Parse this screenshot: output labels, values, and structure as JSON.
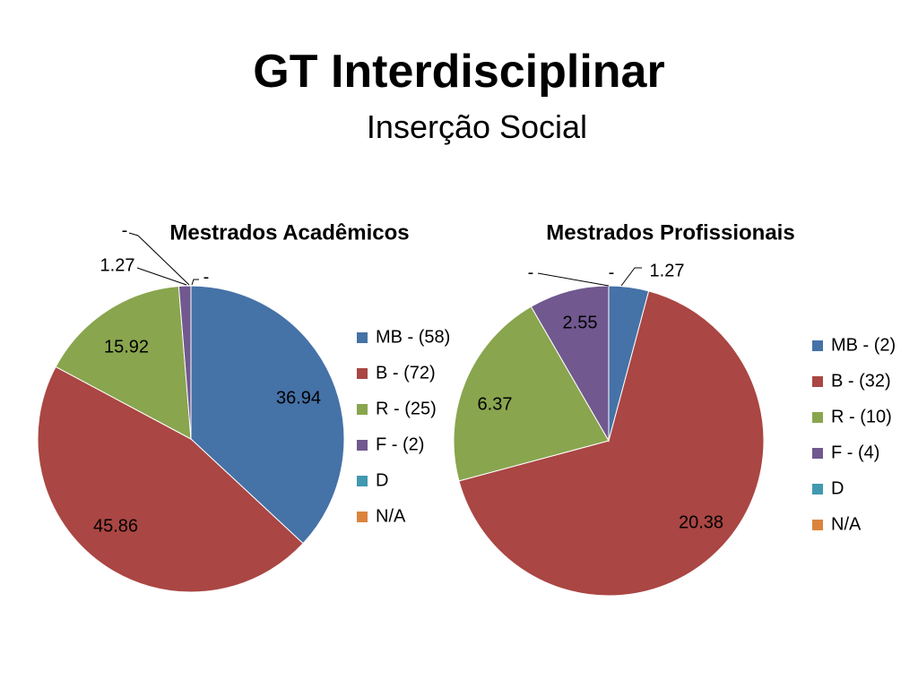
{
  "title": "GT Interdisciplinar",
  "subtitle": "Inserção Social",
  "chart_data": [
    {
      "type": "pie",
      "title": "Mestrados Acadêmicos",
      "categories": [
        "MB - (58)",
        "B - (72)",
        "R - (25)",
        "F - (2)",
        "D",
        "N/A"
      ],
      "values": [
        36.94,
        45.86,
        15.92,
        1.27,
        0,
        0
      ],
      "data_labels": [
        "36.94",
        "45.86",
        "15.92",
        "1.27",
        "-",
        "-"
      ],
      "colors": [
        "#4572A7",
        "#AA4643",
        "#89A54E",
        "#71588F",
        "#4198AF",
        "#DB843D"
      ],
      "legend_position": "right"
    },
    {
      "type": "pie",
      "title": "Mestrados Profissionais",
      "categories": [
        "MB - (2)",
        "B - (32)",
        "R - (10)",
        "F - (4)",
        "D",
        "N/A"
      ],
      "values": [
        1.27,
        20.38,
        6.37,
        2.55,
        0,
        0
      ],
      "data_labels": [
        "1.27",
        "20.38",
        "6.37",
        "2.55",
        "-",
        "-"
      ],
      "colors": [
        "#4572A7",
        "#AA4643",
        "#89A54E",
        "#71588F",
        "#4198AF",
        "#DB843D"
      ],
      "legend_position": "right"
    }
  ]
}
